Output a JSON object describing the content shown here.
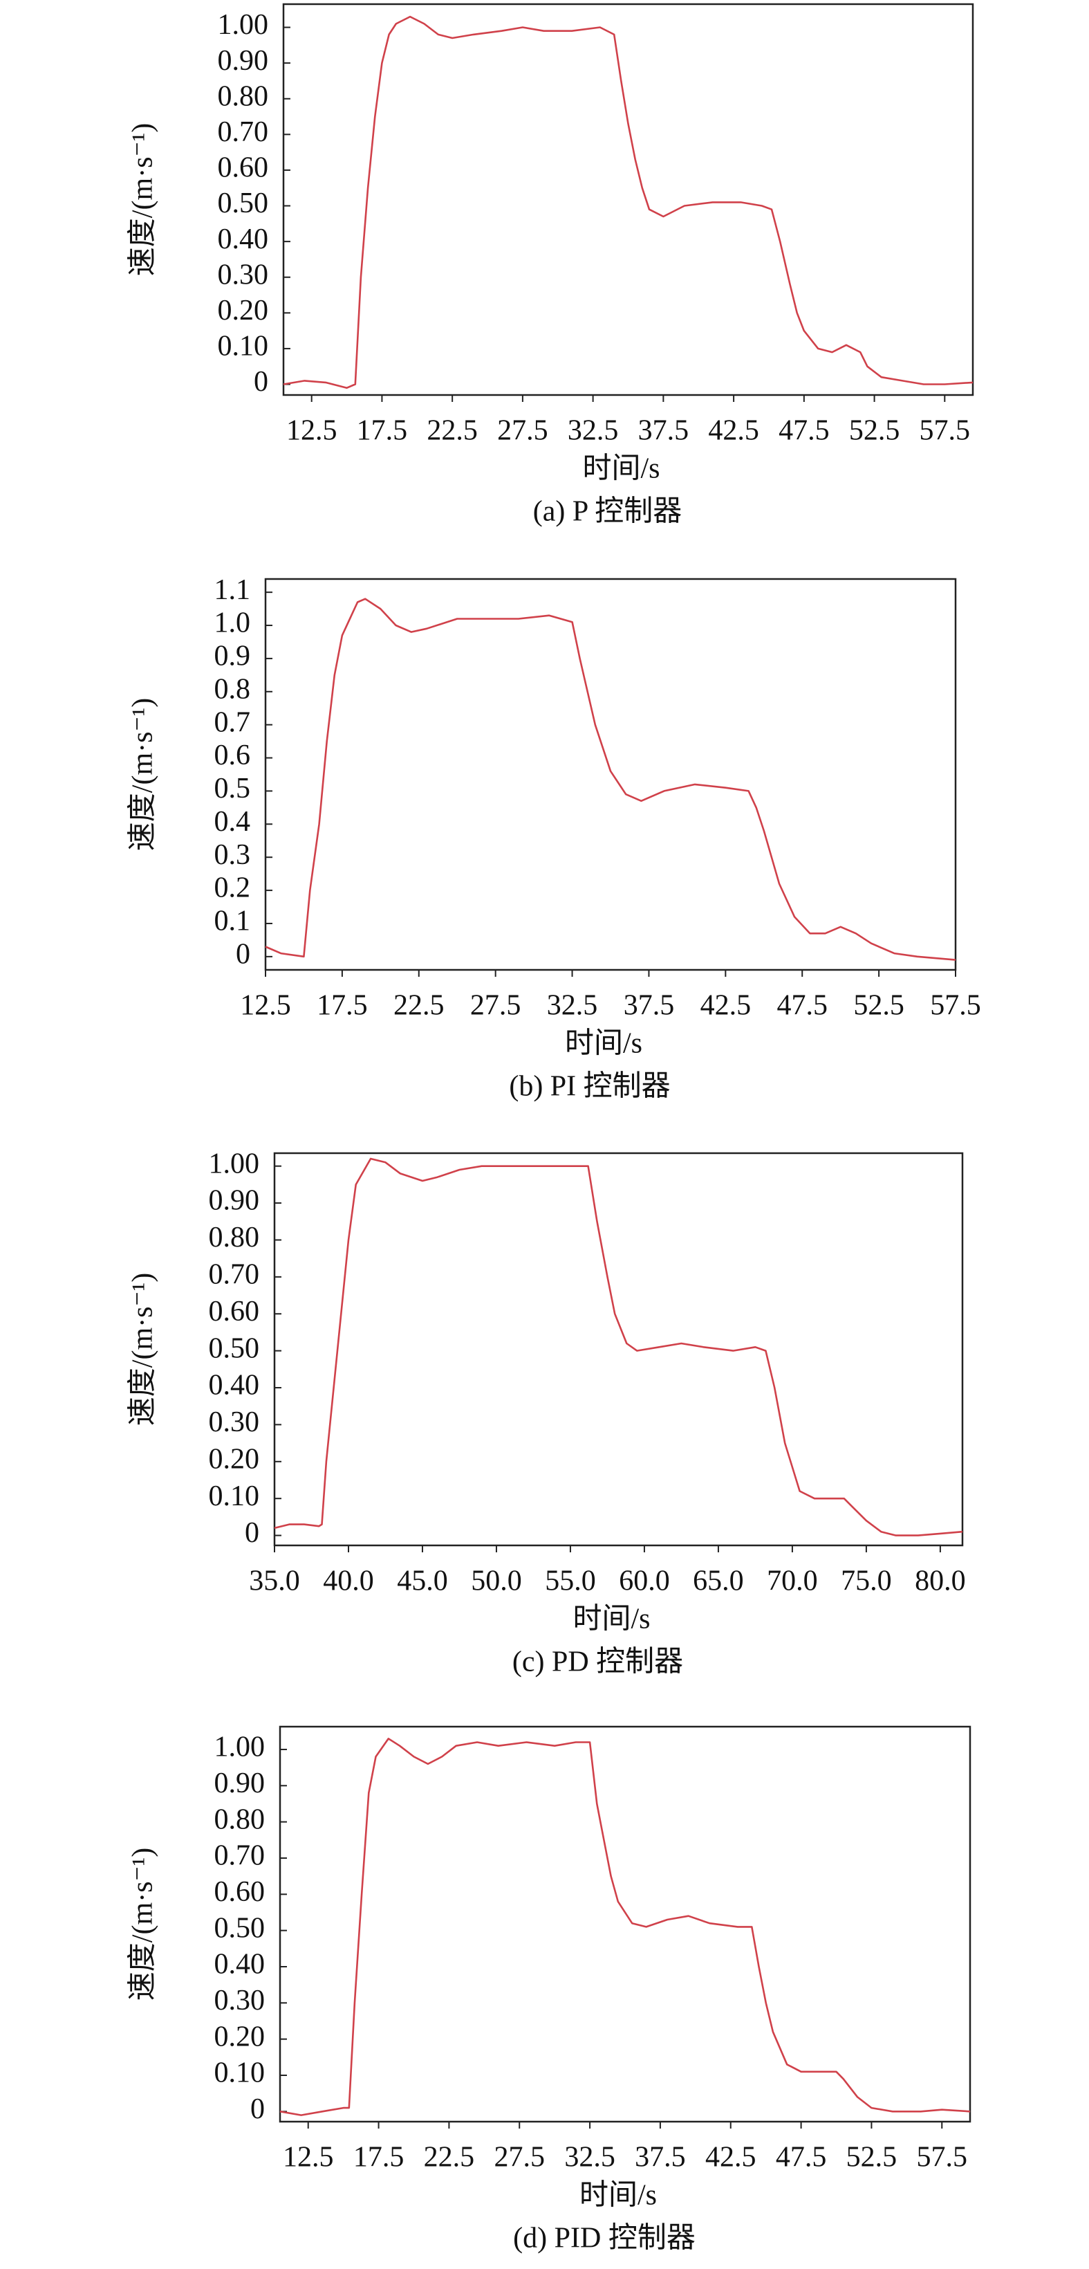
{
  "chart_data": [
    {
      "type": "line",
      "title": "(a) P 控制器",
      "xlabel": "时间/s",
      "ylabel": "速度/(m·s⁻¹)",
      "color": "#d0414a",
      "x": [
        10.5,
        12,
        13.5,
        15,
        15.6,
        16,
        16.5,
        17,
        17.5,
        18,
        18.5,
        19.5,
        20.5,
        21.5,
        22.5,
        24,
        26,
        27.5,
        29,
        31,
        33,
        34,
        34.5,
        35,
        35.5,
        36,
        36.5,
        37.5,
        39,
        41,
        43,
        44.5,
        45.2,
        45.8,
        46.5,
        47,
        47.5,
        48.5,
        49.5,
        50.5,
        51.5,
        52,
        53,
        54.5,
        56,
        57.5,
        59.5
      ],
      "values": [
        0,
        0.01,
        0.005,
        -0.01,
        0,
        0.3,
        0.55,
        0.75,
        0.9,
        0.98,
        1.01,
        1.03,
        1.01,
        0.98,
        0.97,
        0.98,
        0.99,
        1.0,
        0.99,
        0.99,
        1.0,
        0.98,
        0.85,
        0.73,
        0.63,
        0.55,
        0.49,
        0.47,
        0.5,
        0.51,
        0.51,
        0.5,
        0.49,
        0.4,
        0.28,
        0.2,
        0.15,
        0.1,
        0.09,
        0.11,
        0.09,
        0.05,
        0.02,
        0.01,
        0,
        0,
        0.005
      ],
      "xlim": [
        10.5,
        59.5
      ],
      "ylim": [
        -0.03,
        1.065
      ],
      "xticks": [
        12.5,
        17.5,
        22.5,
        27.5,
        32.5,
        37.5,
        42.5,
        47.5,
        52.5,
        57.5
      ],
      "yticks": [
        0,
        {
          "value": 0.1,
          "label": "0.10"
        },
        {
          "value": 0.2,
          "label": "0.20"
        },
        {
          "value": 0.3,
          "label": "0.30"
        },
        {
          "value": 0.4,
          "label": "0.40"
        },
        {
          "value": 0.5,
          "label": "0.50"
        },
        {
          "value": 0.6,
          "label": "0.60"
        },
        {
          "value": 0.7,
          "label": "0.70"
        },
        {
          "value": 0.8,
          "label": "0.80"
        },
        {
          "value": 0.9,
          "label": "0.90"
        },
        {
          "value": 1,
          "label": "1.00"
        }
      ]
    },
    {
      "type": "line",
      "title": "(b) PI 控制器",
      "xlabel": "时间/s",
      "ylabel": "速度/(m·s⁻¹)",
      "color": "#d0414a",
      "x": [
        12.5,
        13.5,
        15,
        15.4,
        16,
        16.5,
        17,
        17.5,
        18.5,
        19,
        20,
        21,
        22,
        23,
        25,
        27,
        29,
        31,
        32.5,
        33,
        33.5,
        34,
        35,
        36,
        37,
        38.5,
        40.5,
        42.5,
        44,
        44.5,
        45,
        45.5,
        46,
        47,
        48,
        49,
        50,
        51,
        52,
        53.5,
        55,
        57.5
      ],
      "values": [
        0.03,
        0.01,
        0,
        0.2,
        0.4,
        0.65,
        0.85,
        0.97,
        1.07,
        1.08,
        1.05,
        1.0,
        0.98,
        0.99,
        1.02,
        1.02,
        1.02,
        1.03,
        1.01,
        0.9,
        0.8,
        0.7,
        0.56,
        0.49,
        0.47,
        0.5,
        0.52,
        0.51,
        0.5,
        0.45,
        0.38,
        0.3,
        0.22,
        0.12,
        0.07,
        0.07,
        0.09,
        0.07,
        0.04,
        0.01,
        0,
        -0.01
      ],
      "xlim": [
        12.5,
        57.5
      ],
      "ylim": [
        -0.04,
        1.14
      ],
      "xticks": [
        12.5,
        17.5,
        22.5,
        27.5,
        32.5,
        37.5,
        42.5,
        47.5,
        52.5,
        57.5
      ],
      "yticks": [
        0,
        0.1,
        0.2,
        0.3,
        0.4,
        0.5,
        0.6,
        0.7,
        0.8,
        0.9,
        {
          "value": 1,
          "label": "1.0"
        },
        1.1
      ]
    },
    {
      "type": "line",
      "title": "(c) PD 控制器",
      "xlabel": "时间/s",
      "ylabel": "速度/(m·s⁻¹)",
      "color": "#d0414a",
      "x": [
        35,
        36,
        37,
        38,
        38.2,
        38.5,
        39,
        39.5,
        40,
        40.5,
        41.5,
        42.5,
        43.5,
        45,
        46,
        47.5,
        49,
        51,
        53,
        55,
        56.2,
        56.8,
        57.5,
        58,
        58.8,
        59.5,
        61,
        62.5,
        64,
        66,
        67.5,
        68.2,
        68.8,
        69.5,
        70.5,
        71.5,
        72.5,
        73.5,
        74,
        75,
        76,
        77,
        78.5,
        80,
        81.5
      ],
      "values": [
        0.02,
        0.03,
        0.03,
        0.025,
        0.03,
        0.2,
        0.4,
        0.6,
        0.8,
        0.95,
        1.02,
        1.01,
        0.98,
        0.96,
        0.97,
        0.99,
        1.0,
        1.0,
        1.0,
        1.0,
        1.0,
        0.85,
        0.7,
        0.6,
        0.52,
        0.5,
        0.51,
        0.52,
        0.51,
        0.5,
        0.51,
        0.5,
        0.4,
        0.25,
        0.12,
        0.1,
        0.1,
        0.1,
        0.08,
        0.04,
        0.01,
        0,
        0,
        0.005,
        0.01
      ],
      "xlim": [
        35,
        81.5
      ],
      "ylim": [
        -0.027,
        1.035
      ],
      "xticks": [
        {
          "value": 35,
          "label": "35.0"
        },
        {
          "value": 40,
          "label": "40.0"
        },
        {
          "value": 45,
          "label": "45.0"
        },
        {
          "value": 50,
          "label": "50.0"
        },
        {
          "value": 55,
          "label": "55.0"
        },
        {
          "value": 60,
          "label": "60.0"
        },
        {
          "value": 65,
          "label": "65.0"
        },
        {
          "value": 70,
          "label": "70.0"
        },
        {
          "value": 75,
          "label": "75.0"
        },
        {
          "value": 80,
          "label": "80.0"
        }
      ],
      "yticks": [
        0,
        {
          "value": 0.1,
          "label": "0.10"
        },
        {
          "value": 0.2,
          "label": "0.20"
        },
        {
          "value": 0.3,
          "label": "0.30"
        },
        {
          "value": 0.4,
          "label": "0.40"
        },
        {
          "value": 0.5,
          "label": "0.50"
        },
        {
          "value": 0.6,
          "label": "0.60"
        },
        {
          "value": 0.7,
          "label": "0.70"
        },
        {
          "value": 0.8,
          "label": "0.80"
        },
        {
          "value": 0.9,
          "label": "0.90"
        },
        {
          "value": 1,
          "label": "1.00"
        }
      ]
    },
    {
      "type": "line",
      "title": "(d) PID 控制器",
      "xlabel": "时间/s",
      "ylabel": "速度/(m·s⁻¹)",
      "color": "#d0414a",
      "x": [
        10.5,
        12,
        13.5,
        15,
        15.4,
        15.8,
        16.3,
        16.8,
        17.3,
        18.2,
        19,
        20,
        21,
        22,
        23,
        24.5,
        26,
        28,
        30,
        31.5,
        32.5,
        33,
        33.5,
        34,
        34.5,
        35.5,
        36.5,
        38,
        39.5,
        41,
        43,
        44,
        44.5,
        45,
        45.5,
        46.5,
        47.5,
        49,
        50,
        50.5,
        51.5,
        52.5,
        54,
        56,
        57.5,
        59.5
      ],
      "values": [
        0,
        -0.01,
        0,
        0.01,
        0.01,
        0.3,
        0.6,
        0.88,
        0.98,
        1.03,
        1.01,
        0.98,
        0.96,
        0.98,
        1.01,
        1.02,
        1.01,
        1.02,
        1.01,
        1.02,
        1.02,
        0.85,
        0.75,
        0.65,
        0.58,
        0.52,
        0.51,
        0.53,
        0.54,
        0.52,
        0.51,
        0.51,
        0.4,
        0.3,
        0.22,
        0.13,
        0.11,
        0.11,
        0.11,
        0.09,
        0.04,
        0.01,
        0,
        0,
        0.005,
        0
      ],
      "xlim": [
        10.5,
        59.5
      ],
      "ylim": [
        -0.028,
        1.063
      ],
      "xticks": [
        12.5,
        17.5,
        22.5,
        27.5,
        32.5,
        37.5,
        42.5,
        47.5,
        52.5,
        57.5
      ],
      "yticks": [
        0,
        {
          "value": 0.1,
          "label": "0.10"
        },
        {
          "value": 0.2,
          "label": "0.20"
        },
        {
          "value": 0.3,
          "label": "0.30"
        },
        {
          "value": 0.4,
          "label": "0.40"
        },
        {
          "value": 0.5,
          "label": "0.50"
        },
        {
          "value": 0.6,
          "label": "0.60"
        },
        {
          "value": 0.7,
          "label": "0.70"
        },
        {
          "value": 0.8,
          "label": "0.80"
        },
        {
          "value": 0.9,
          "label": "0.90"
        },
        {
          "value": 1,
          "label": "1.00"
        }
      ]
    }
  ]
}
